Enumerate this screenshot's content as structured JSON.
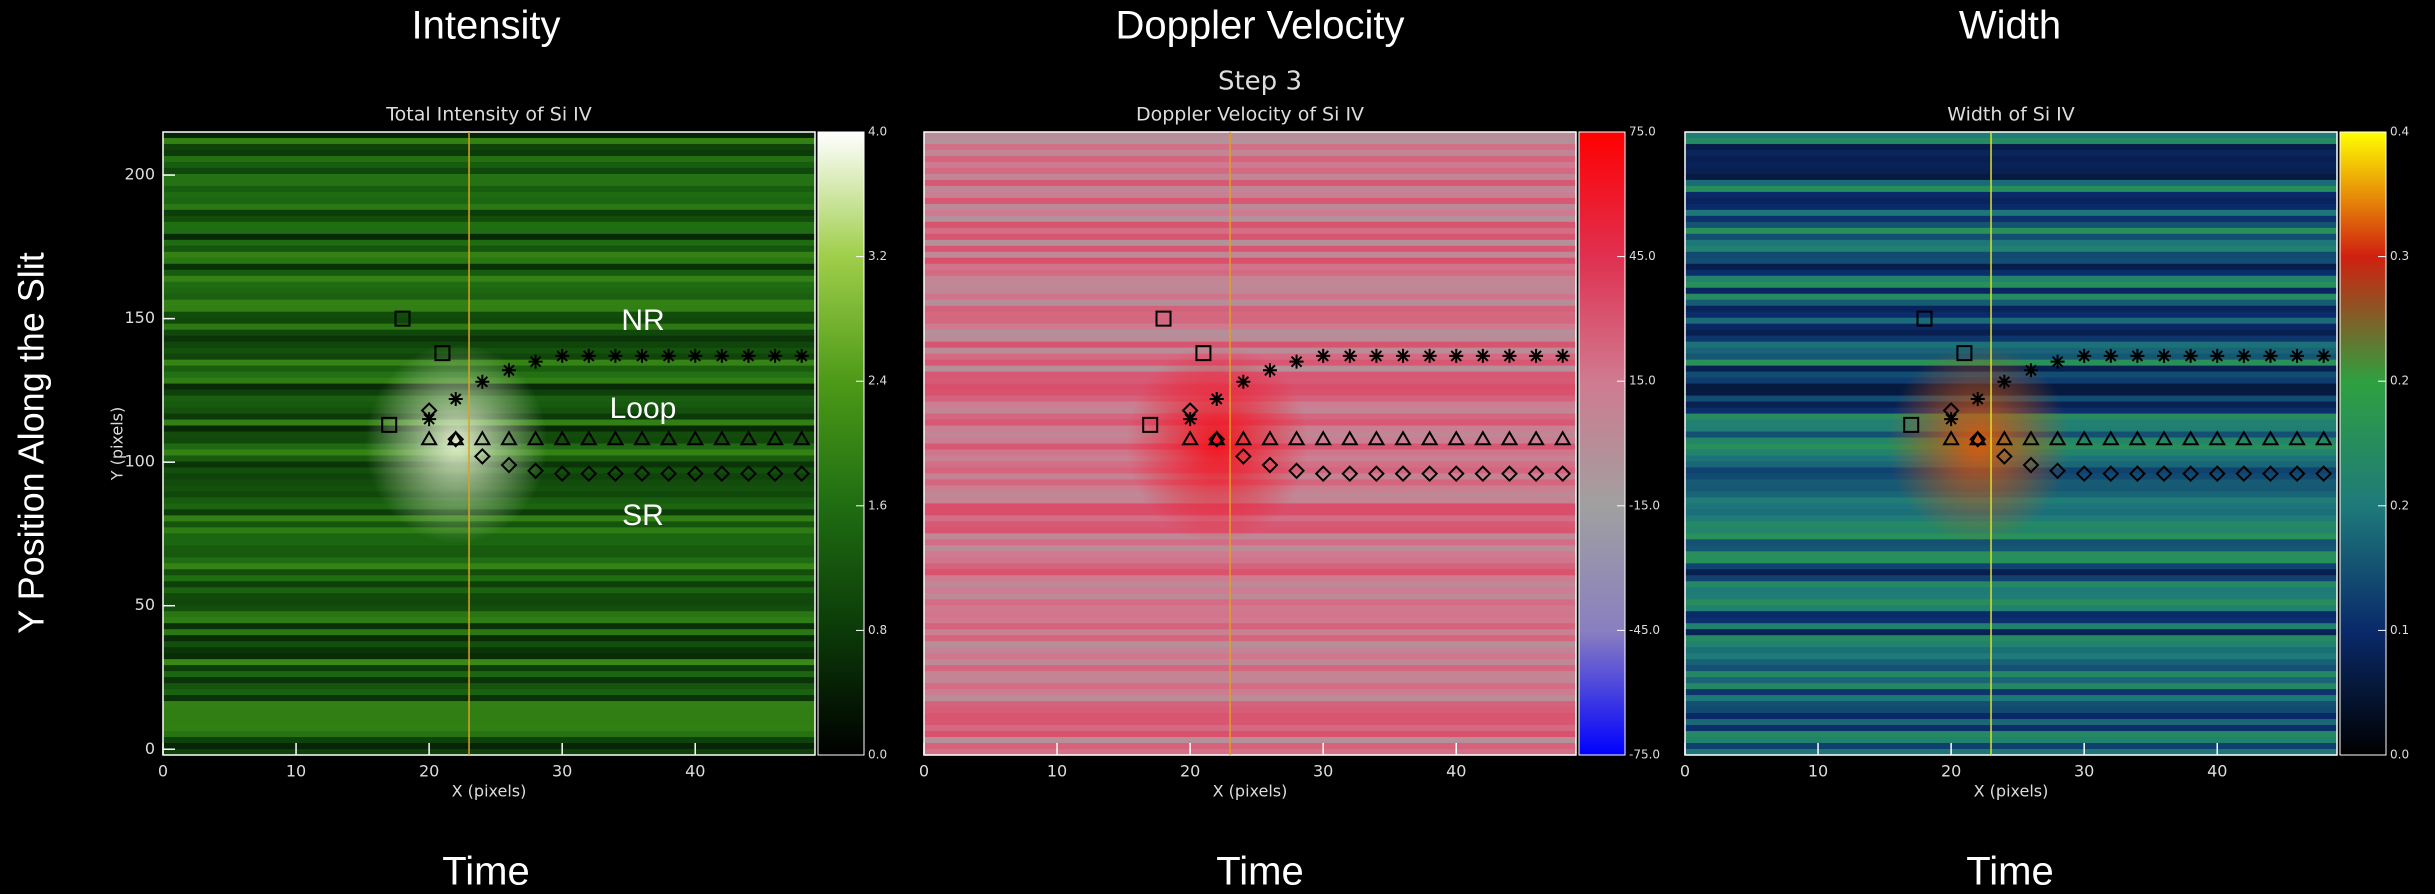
{
  "slide": {
    "ylabel": "Y Position Along the Slit",
    "step": "Step 3"
  },
  "chart_data": [
    {
      "type": "heatmap",
      "heading": "Intensity",
      "title": "Total Intensity of Si IV",
      "xlabel": "X (pixels)",
      "ylabel": "Y (pixels)",
      "footer": "Time",
      "xlim": [
        0,
        49
      ],
      "ylim": [
        -2,
        215
      ],
      "xticks": [
        0,
        10,
        20,
        30,
        40
      ],
      "yticks": [
        0,
        50,
        100,
        150,
        200
      ],
      "colormap": [
        "#000000",
        "#0b3a08",
        "#1f6d12",
        "#4d9a18",
        "#9fce4a",
        "#ffffff"
      ],
      "colorbar": {
        "lim": [
          0,
          4
        ],
        "ticks": [
          {
            "value": 0,
            "label": "0.0"
          },
          {
            "value": 0.8,
            "label": "0.8"
          },
          {
            "value": 1.6,
            "label": "1.6"
          },
          {
            "value": 2.4,
            "label": "2.4"
          },
          {
            "value": 3.2,
            "label": "3.2"
          },
          {
            "value": 4,
            "label": "4.0"
          }
        ]
      },
      "annotations": [
        "NR",
        "Loop",
        "SR"
      ],
      "vline": 23,
      "vline_color": "#e0a020",
      "series": [
        {
          "marker": "asterisk",
          "color": "#000000",
          "x": [
            20,
            22,
            24,
            26,
            28,
            30,
            32,
            34,
            36,
            38,
            40,
            42,
            44,
            46,
            48
          ],
          "values": [
            115,
            122,
            128,
            132,
            135,
            137,
            137,
            137,
            137,
            137,
            137,
            137,
            137,
            137,
            137
          ]
        },
        {
          "marker": "triangle",
          "color": "#000000",
          "x": [
            20,
            22,
            24,
            26,
            28,
            30,
            32,
            34,
            36,
            38,
            40,
            42,
            44,
            46,
            48
          ],
          "values": [
            108,
            108,
            108,
            108,
            108,
            108,
            108,
            108,
            108,
            108,
            108,
            108,
            108,
            108,
            108
          ]
        },
        {
          "marker": "diamond",
          "color": "#000000",
          "x": [
            20,
            22,
            24,
            26,
            28,
            30,
            32,
            34,
            36,
            38,
            40,
            42,
            44,
            46,
            48
          ],
          "values": [
            118,
            108,
            102,
            99,
            97,
            96,
            96,
            96,
            96,
            96,
            96,
            96,
            96,
            96,
            96
          ]
        },
        {
          "marker": "square",
          "color": "#000000",
          "x": [
            17,
            18,
            21
          ],
          "values": [
            113,
            150,
            138
          ]
        }
      ]
    },
    {
      "type": "heatmap",
      "heading": "Doppler Velocity",
      "title": "Doppler Velocity of Si IV",
      "xlabel": "X (pixels)",
      "footer": "Time",
      "xlim": [
        0,
        49
      ],
      "ylim": [
        -2,
        215
      ],
      "xticks": [
        0,
        10,
        20,
        30,
        40
      ],
      "colormap": [
        "#0000ff",
        "#8a7fc0",
        "#a0a0a0",
        "#d07a90",
        "#e03050",
        "#ff0000"
      ],
      "colorbar": {
        "lim": [
          -75,
          75
        ],
        "ticks": [
          {
            "value": -75,
            "label": "-75.0"
          },
          {
            "value": -45,
            "label": "-45.0"
          },
          {
            "value": -15,
            "label": "-15.0"
          },
          {
            "value": 15,
            "label": "15.0"
          },
          {
            "value": 45,
            "label": "45.0"
          },
          {
            "value": 75,
            "label": "75.0"
          }
        ]
      },
      "vline": 23,
      "vline_color": "#e0a020",
      "series": [
        {
          "marker": "asterisk",
          "color": "#000000",
          "x": [
            20,
            22,
            24,
            26,
            28,
            30,
            32,
            34,
            36,
            38,
            40,
            42,
            44,
            46,
            48
          ],
          "values": [
            115,
            122,
            128,
            132,
            135,
            137,
            137,
            137,
            137,
            137,
            137,
            137,
            137,
            137,
            137
          ]
        },
        {
          "marker": "triangle",
          "color": "#000000",
          "x": [
            20,
            22,
            24,
            26,
            28,
            30,
            32,
            34,
            36,
            38,
            40,
            42,
            44,
            46,
            48
          ],
          "values": [
            108,
            108,
            108,
            108,
            108,
            108,
            108,
            108,
            108,
            108,
            108,
            108,
            108,
            108,
            108
          ]
        },
        {
          "marker": "diamond",
          "color": "#000000",
          "x": [
            20,
            22,
            24,
            26,
            28,
            30,
            32,
            34,
            36,
            38,
            40,
            42,
            44,
            46,
            48
          ],
          "values": [
            118,
            108,
            102,
            99,
            97,
            96,
            96,
            96,
            96,
            96,
            96,
            96,
            96,
            96,
            96
          ]
        },
        {
          "marker": "square",
          "color": "#000000",
          "x": [
            17,
            18,
            21
          ],
          "values": [
            113,
            150,
            138
          ]
        }
      ]
    },
    {
      "type": "heatmap",
      "heading": "Width",
      "title": "Width of Si IV",
      "xlabel": "X (pixels)",
      "footer": "Time",
      "xlim": [
        0,
        49
      ],
      "ylim": [
        -2,
        215
      ],
      "xticks": [
        0,
        10,
        20,
        30,
        40
      ],
      "colormap": [
        "#000000",
        "#0a2a6a",
        "#1e7a7a",
        "#2fa040",
        "#d02010",
        "#ffff00"
      ],
      "colorbar": {
        "lim": [
          0,
          0.4
        ],
        "ticks": [
          {
            "value": 0,
            "label": "0.0"
          },
          {
            "value": 0.08,
            "label": "0.1"
          },
          {
            "value": 0.16,
            "label": "0.2"
          },
          {
            "value": 0.24,
            "label": "0.2"
          },
          {
            "value": 0.32,
            "label": "0.3"
          },
          {
            "value": 0.4,
            "label": "0.4"
          }
        ]
      },
      "vline": 23,
      "vline_color": "#e0e020",
      "series": [
        {
          "marker": "asterisk",
          "color": "#000000",
          "x": [
            20,
            22,
            24,
            26,
            28,
            30,
            32,
            34,
            36,
            38,
            40,
            42,
            44,
            46,
            48
          ],
          "values": [
            115,
            122,
            128,
            132,
            135,
            137,
            137,
            137,
            137,
            137,
            137,
            137,
            137,
            137,
            137
          ]
        },
        {
          "marker": "triangle",
          "color": "#000000",
          "x": [
            20,
            22,
            24,
            26,
            28,
            30,
            32,
            34,
            36,
            38,
            40,
            42,
            44,
            46,
            48
          ],
          "values": [
            108,
            108,
            108,
            108,
            108,
            108,
            108,
            108,
            108,
            108,
            108,
            108,
            108,
            108,
            108
          ]
        },
        {
          "marker": "diamond",
          "color": "#000000",
          "x": [
            20,
            22,
            24,
            26,
            28,
            30,
            32,
            34,
            36,
            38,
            40,
            42,
            44,
            46,
            48
          ],
          "values": [
            118,
            108,
            102,
            99,
            97,
            96,
            96,
            96,
            96,
            96,
            96,
            96,
            96,
            96,
            96
          ]
        },
        {
          "marker": "square",
          "color": "#000000",
          "x": [
            17,
            18,
            21
          ],
          "values": [
            113,
            150,
            138
          ]
        }
      ]
    }
  ]
}
